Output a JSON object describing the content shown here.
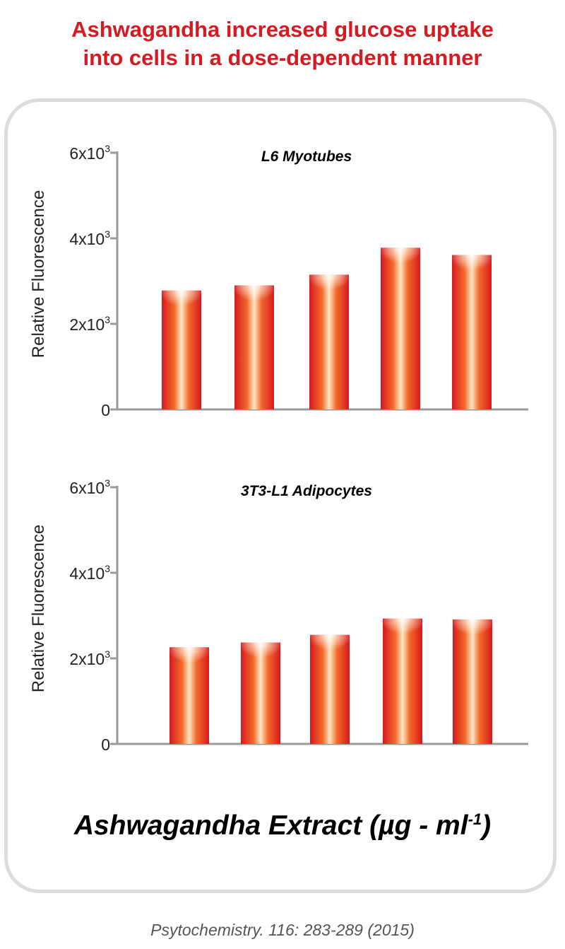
{
  "title_lines": [
    "Ashwagandha increased glucose uptake",
    "into cells in a dose-dependent manner"
  ],
  "xlabel": {
    "text": "Ashwagandha Extract (µg - ml",
    "sup": "-1",
    "close": ")"
  },
  "citation": "Psytochemistry. 116: 283-289 (2015)",
  "colors": {
    "title": "#d71920",
    "bar_edge": "#d71920",
    "bar_highlight": "#ffe7c4",
    "bar_mid": "#f26a2a"
  },
  "chart_data": [
    {
      "type": "bar",
      "title": "L6  Myotubes",
      "ylabel": "Relative Fluorescence",
      "categories": [
        "",
        "",
        "",
        "",
        ""
      ],
      "values": [
        2780,
        2900,
        3150,
        3780,
        3610
      ],
      "ylim": [
        0,
        6000
      ],
      "yticks": [
        {
          "value": 0,
          "base": "0",
          "exp": ""
        },
        {
          "value": 2000,
          "base": "2x10",
          "exp": "3"
        },
        {
          "value": 4000,
          "base": "4x10",
          "exp": "3"
        },
        {
          "value": 6000,
          "base": "6x10",
          "exp": "3"
        }
      ]
    },
    {
      "type": "bar",
      "title": "3T3-L1 Adipocytes",
      "ylabel": "Relative Fluorescence",
      "categories": [
        "",
        "",
        "",
        "",
        ""
      ],
      "values": [
        2260,
        2370,
        2550,
        2930,
        2910
      ],
      "ylim": [
        0,
        6000
      ],
      "yticks": [
        {
          "value": 0,
          "base": "0",
          "exp": ""
        },
        {
          "value": 2000,
          "base": "2x10",
          "exp": "3"
        },
        {
          "value": 4000,
          "base": "4x10",
          "exp": "3"
        },
        {
          "value": 6000,
          "base": "6x10",
          "exp": "3"
        }
      ]
    }
  ]
}
